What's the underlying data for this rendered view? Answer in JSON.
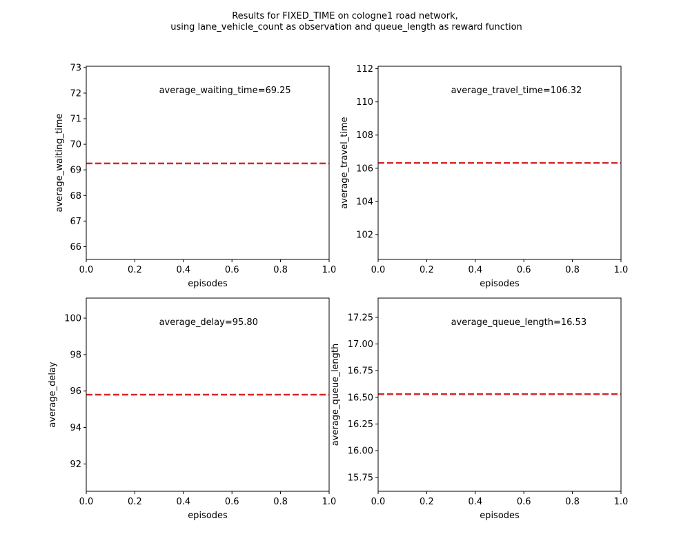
{
  "figure": {
    "title_line1": "Results for FIXED_TIME on cologne1 road network,",
    "title_line2": "using lane_vehicle_count as observation and queue_length as reward function",
    "line_color": "#d62728"
  },
  "chart_data": [
    {
      "type": "line",
      "xlabel": "episodes",
      "ylabel": "average_waiting_time",
      "xlim": [
        0,
        1
      ],
      "ylim": [
        65.5,
        73.05
      ],
      "xticks": [
        "0.0",
        "0.2",
        "0.4",
        "0.6",
        "0.8",
        "1.0"
      ],
      "yticks": [
        "66",
        "67",
        "68",
        "69",
        "70",
        "71",
        "72",
        "73"
      ],
      "ytick_values": [
        66,
        67,
        68,
        69,
        70,
        71,
        72,
        73
      ],
      "hline": 69.25,
      "annotation": "average_waiting_time=69.25",
      "grid": false
    },
    {
      "type": "line",
      "xlabel": "episodes",
      "ylabel": "average_travel_time",
      "xlim": [
        0,
        1
      ],
      "ylim": [
        100.5,
        112.15
      ],
      "xticks": [
        "0.0",
        "0.2",
        "0.4",
        "0.6",
        "0.8",
        "1.0"
      ],
      "yticks": [
        "102",
        "104",
        "106",
        "108",
        "110",
        "112"
      ],
      "ytick_values": [
        102,
        104,
        106,
        108,
        110,
        112
      ],
      "hline": 106.32,
      "annotation": "average_travel_time=106.32",
      "grid": false
    },
    {
      "type": "line",
      "xlabel": "episodes",
      "ylabel": "average_delay",
      "xlim": [
        0,
        1
      ],
      "ylim": [
        90.5,
        101.1
      ],
      "xticks": [
        "0.0",
        "0.2",
        "0.4",
        "0.6",
        "0.8",
        "1.0"
      ],
      "yticks": [
        "92",
        "94",
        "96",
        "98",
        "100"
      ],
      "ytick_values": [
        92,
        94,
        96,
        98,
        100
      ],
      "hline": 95.8,
      "annotation": "average_delay=95.80",
      "grid": false
    },
    {
      "type": "line",
      "xlabel": "episodes",
      "ylabel": "average_queue_length",
      "xlim": [
        0,
        1
      ],
      "ylim": [
        15.62,
        17.43
      ],
      "xticks": [
        "0.0",
        "0.2",
        "0.4",
        "0.6",
        "0.8",
        "1.0"
      ],
      "yticks": [
        "15.75",
        "16.00",
        "16.25",
        "16.50",
        "16.75",
        "17.00",
        "17.25"
      ],
      "ytick_values": [
        15.75,
        16.0,
        16.25,
        16.5,
        16.75,
        17.0,
        17.25
      ],
      "hline": 16.53,
      "annotation": "average_queue_length=16.53",
      "grid": false
    }
  ]
}
